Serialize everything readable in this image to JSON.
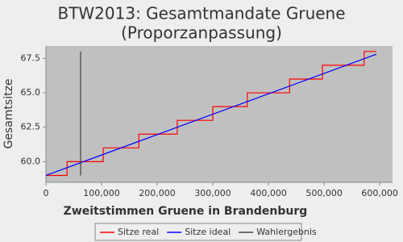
{
  "chart_data": {
    "type": "line",
    "title": "BTW2013: Gesamtmandate Gruene",
    "subtitle": "(Proporzanpassung)",
    "x_label": "Zweitstimmen Gruene in Brandenburg",
    "y_label": "Gesamtsitze",
    "xlim": [
      0,
      623000
    ],
    "ylim": [
      58.5,
      68.4
    ],
    "xticks": [
      0,
      {
        "value": 100000,
        "label": "100,000"
      },
      {
        "value": 200000,
        "label": "200,000"
      },
      {
        "value": 300000,
        "label": "300,000"
      },
      {
        "value": 400000,
        "label": "400,000"
      },
      {
        "value": 500000,
        "label": "500,000"
      },
      {
        "value": 600000,
        "label": "600,000"
      }
    ],
    "yticks": [
      {
        "value": 60,
        "label": "60.0"
      },
      62.5,
      {
        "value": 65,
        "label": "65.0"
      },
      67.5
    ],
    "grid": false,
    "legend": "bottom",
    "series": [
      {
        "name": "Sitze real",
        "color": "#ff0000",
        "step": true,
        "x": [
          0,
          38000,
          103000,
          167000,
          236000,
          300000,
          362000,
          438000,
          497000,
          572000,
          594000
        ],
        "values": [
          59,
          60,
          61,
          62,
          63,
          64,
          65,
          66,
          67,
          68,
          68
        ]
      },
      {
        "name": "Sitze ideal",
        "color": "#0000ff",
        "x": [
          0,
          594000
        ],
        "values": [
          59,
          67.8
        ]
      },
      {
        "name": "Wahlergebnis",
        "color": "#404040",
        "x": [
          62300,
          62300
        ],
        "values": [
          59,
          68
        ]
      }
    ]
  }
}
